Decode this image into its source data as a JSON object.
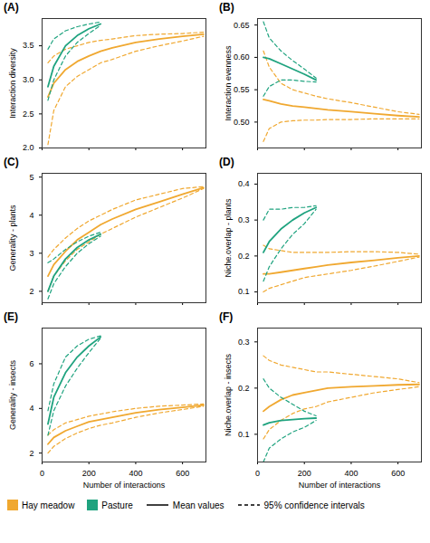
{
  "chart_data": [
    {
      "type": "line",
      "title": "(A)",
      "y_label": "Interaction diversity",
      "tick_labels": "y",
      "x": [
        25,
        50,
        100,
        150,
        200,
        250,
        300,
        400,
        500,
        600,
        690
      ],
      "xlim": [
        0,
        700
      ],
      "xticks": [
        0,
        200,
        400,
        600
      ],
      "ylim": [
        2.0,
        3.9
      ],
      "yticks": [
        {
          "value": 2,
          "label": "2.0"
        },
        2.5,
        {
          "value": 3,
          "label": "3.0"
        },
        3.5
      ],
      "series": [
        {
          "name": "Hay meadow",
          "color": "#F0A830",
          "values": [
            2.75,
            2.95,
            3.15,
            3.27,
            3.35,
            3.42,
            3.47,
            3.55,
            3.6,
            3.64,
            3.67
          ],
          "lower": [
            2.05,
            2.55,
            2.9,
            3.05,
            3.15,
            3.25,
            3.3,
            3.42,
            3.5,
            3.57,
            3.64
          ],
          "upper": [
            3.25,
            3.35,
            3.45,
            3.5,
            3.55,
            3.58,
            3.6,
            3.65,
            3.67,
            3.68,
            3.7
          ]
        },
        {
          "name": "Pasture",
          "color": "#1FA37F",
          "values": [
            2.9,
            3.2,
            3.5,
            3.65,
            3.75,
            3.82,
            null,
            null,
            null,
            null,
            null
          ],
          "lower": [
            2.7,
            3.0,
            3.35,
            3.55,
            3.68,
            3.8,
            null,
            null,
            null,
            null,
            null
          ],
          "upper": [
            3.45,
            3.6,
            3.72,
            3.78,
            3.82,
            3.85,
            null,
            null,
            null,
            null,
            null
          ]
        }
      ]
    },
    {
      "type": "line",
      "title": "(B)",
      "y_label": "Interaction evenness",
      "tick_labels": "y",
      "x": [
        25,
        50,
        100,
        150,
        200,
        250,
        300,
        400,
        500,
        600,
        690
      ],
      "xlim": [
        0,
        700
      ],
      "xticks": [
        0,
        200,
        400,
        600
      ],
      "ylim": [
        0.46,
        0.66
      ],
      "yticks": [
        {
          "value": 0.5,
          "label": "0.50"
        },
        0.55,
        {
          "value": 0.6,
          "label": "0.60"
        },
        0.65
      ],
      "series": [
        {
          "name": "Hay meadow",
          "color": "#F0A830",
          "values": [
            0.535,
            0.533,
            0.528,
            0.525,
            0.523,
            0.521,
            0.519,
            0.516,
            0.513,
            0.51,
            0.508
          ],
          "lower": [
            0.47,
            0.49,
            0.5,
            0.502,
            0.503,
            0.503,
            0.504,
            0.504,
            0.505,
            0.505,
            0.505
          ],
          "upper": [
            0.61,
            0.585,
            0.56,
            0.55,
            0.545,
            0.54,
            0.536,
            0.53,
            0.523,
            0.516,
            0.512
          ]
        },
        {
          "name": "Pasture",
          "color": "#1FA37F",
          "values": [
            0.6,
            0.598,
            0.59,
            0.582,
            0.574,
            0.565,
            null,
            null,
            null,
            null,
            null
          ],
          "lower": [
            0.54,
            0.555,
            0.565,
            0.565,
            0.563,
            0.562,
            null,
            null,
            null,
            null,
            null
          ],
          "upper": [
            0.655,
            0.63,
            0.61,
            0.595,
            0.582,
            0.568,
            null,
            null,
            null,
            null,
            null
          ]
        }
      ]
    },
    {
      "type": "line",
      "title": "(C)",
      "y_label": "Generality - plants",
      "tick_labels": "y",
      "x": [
        25,
        50,
        100,
        150,
        200,
        250,
        300,
        400,
        500,
        600,
        690
      ],
      "xlim": [
        0,
        700
      ],
      "xticks": [
        0,
        200,
        400,
        600
      ],
      "ylim": [
        1.7,
        5.1
      ],
      "yticks": [
        2,
        3,
        4,
        5
      ],
      "series": [
        {
          "name": "Hay meadow",
          "color": "#F0A830",
          "values": [
            2.4,
            2.7,
            3.05,
            3.35,
            3.55,
            3.75,
            3.9,
            4.15,
            4.35,
            4.55,
            4.72
          ],
          "lower": [
            2.0,
            2.4,
            2.8,
            3.1,
            3.3,
            3.5,
            3.65,
            3.95,
            4.2,
            4.45,
            4.7
          ],
          "upper": [
            2.9,
            3.1,
            3.4,
            3.65,
            3.85,
            4.0,
            4.15,
            4.4,
            4.55,
            4.7,
            4.75
          ]
        },
        {
          "name": "Pasture",
          "color": "#1FA37F",
          "values": [
            2.0,
            2.4,
            2.85,
            3.15,
            3.35,
            3.5,
            null,
            null,
            null,
            null,
            null
          ],
          "lower": [
            1.8,
            2.2,
            2.65,
            3.0,
            3.25,
            3.45,
            null,
            null,
            null,
            null,
            null
          ],
          "upper": [
            2.75,
            2.85,
            3.1,
            3.3,
            3.45,
            3.55,
            null,
            null,
            null,
            null,
            null
          ]
        }
      ]
    },
    {
      "type": "line",
      "title": "(D)",
      "y_label": "Niche.overlap - plants",
      "tick_labels": "y",
      "x": [
        25,
        50,
        100,
        150,
        200,
        250,
        300,
        400,
        500,
        600,
        690
      ],
      "xlim": [
        0,
        700
      ],
      "xticks": [
        0,
        200,
        400,
        600
      ],
      "ylim": [
        0.07,
        0.43
      ],
      "yticks": [
        0.1,
        0.2,
        0.3,
        0.4
      ],
      "series": [
        {
          "name": "Hay meadow",
          "color": "#F0A830",
          "values": [
            0.15,
            0.15,
            0.155,
            0.16,
            0.165,
            0.17,
            0.175,
            0.182,
            0.188,
            0.195,
            0.2
          ],
          "lower": [
            0.1,
            0.11,
            0.12,
            0.13,
            0.14,
            0.145,
            0.15,
            0.16,
            0.172,
            0.185,
            0.197
          ],
          "upper": [
            0.23,
            0.22,
            0.215,
            0.21,
            0.21,
            0.21,
            0.21,
            0.212,
            0.212,
            0.21,
            0.205
          ]
        },
        {
          "name": "Pasture",
          "color": "#1FA37F",
          "values": [
            0.21,
            0.24,
            0.275,
            0.3,
            0.32,
            0.335,
            null,
            null,
            null,
            null,
            null
          ],
          "lower": [
            0.13,
            0.17,
            0.22,
            0.26,
            0.29,
            0.33,
            null,
            null,
            null,
            null,
            null
          ],
          "upper": [
            0.3,
            0.33,
            0.33,
            0.335,
            0.335,
            0.34,
            null,
            null,
            null,
            null,
            null
          ]
        }
      ]
    },
    {
      "type": "line",
      "title": "(E)",
      "y_label": "Generality - insects",
      "x_label": "Number of interactions",
      "x": [
        25,
        50,
        100,
        150,
        200,
        250,
        300,
        400,
        500,
        600,
        690
      ],
      "xlim": [
        0,
        700
      ],
      "xticks": [
        0,
        200,
        400,
        600
      ],
      "ylim": [
        1.6,
        7.6
      ],
      "yticks": [
        2,
        4,
        6
      ],
      "series": [
        {
          "name": "Hay meadow",
          "color": "#F0A830",
          "values": [
            2.4,
            2.7,
            3.0,
            3.2,
            3.4,
            3.5,
            3.6,
            3.8,
            3.95,
            4.05,
            4.15
          ],
          "lower": [
            2.0,
            2.3,
            2.65,
            2.9,
            3.1,
            3.25,
            3.35,
            3.6,
            3.8,
            3.95,
            4.1
          ],
          "upper": [
            2.8,
            3.05,
            3.35,
            3.5,
            3.65,
            3.75,
            3.85,
            4.0,
            4.1,
            4.15,
            4.2
          ]
        },
        {
          "name": "Pasture",
          "color": "#1FA37F",
          "values": [
            3.3,
            4.5,
            5.6,
            6.3,
            6.8,
            7.2,
            null,
            null,
            null,
            null,
            null
          ],
          "lower": [
            2.8,
            3.9,
            5.0,
            5.8,
            6.5,
            7.15,
            null,
            null,
            null,
            null,
            null
          ],
          "upper": [
            3.9,
            5.1,
            6.3,
            6.8,
            7.1,
            7.25,
            null,
            null,
            null,
            null,
            null
          ]
        }
      ]
    },
    {
      "type": "line",
      "title": "(F)",
      "y_label": "Niche.overlap - insects",
      "x_label": "Number of interactions",
      "x": [
        25,
        50,
        100,
        150,
        200,
        250,
        300,
        400,
        500,
        600,
        690
      ],
      "xlim": [
        0,
        700
      ],
      "xticks": [
        0,
        200,
        400,
        600
      ],
      "ylim": [
        0.04,
        0.33
      ],
      "yticks": [
        0.1,
        0.2,
        0.3
      ],
      "series": [
        {
          "name": "Hay meadow",
          "color": "#F0A830",
          "values": [
            0.15,
            0.16,
            0.175,
            0.185,
            0.19,
            0.195,
            0.2,
            0.203,
            0.205,
            0.207,
            0.208
          ],
          "lower": [
            0.09,
            0.11,
            0.13,
            0.145,
            0.155,
            0.16,
            0.17,
            0.18,
            0.19,
            0.197,
            0.203
          ],
          "upper": [
            0.27,
            0.26,
            0.25,
            0.245,
            0.24,
            0.235,
            0.235,
            0.23,
            0.225,
            0.22,
            0.212
          ]
        },
        {
          "name": "Pasture",
          "color": "#1FA37F",
          "values": [
            0.12,
            0.125,
            0.13,
            0.132,
            0.134,
            0.135,
            null,
            null,
            null,
            null,
            null
          ],
          "lower": [
            0.04,
            0.07,
            0.09,
            0.105,
            0.115,
            0.13,
            null,
            null,
            null,
            null,
            null
          ],
          "upper": [
            0.22,
            0.2,
            0.18,
            0.165,
            0.15,
            0.14,
            null,
            null,
            null,
            null,
            null
          ]
        }
      ]
    }
  ],
  "legend_entries": [
    {
      "name": "Mean values",
      "line_style": "solid"
    },
    {
      "name": "95% confidence intervals",
      "line_style": "dashed"
    }
  ]
}
